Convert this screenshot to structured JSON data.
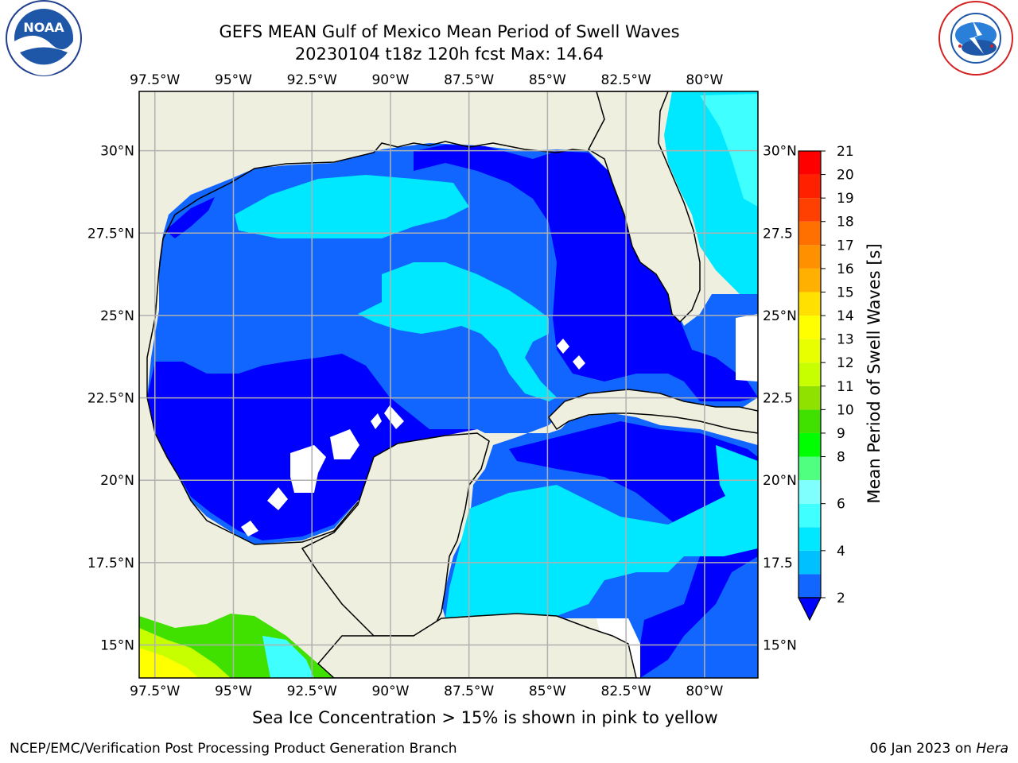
{
  "title_line1": "GEFS MEAN Gulf of Mexico Mean Period of Swell Waves",
  "title_line2": "20230104 t18z 120h fcst   Max: 14.64",
  "note": "Sea Ice Concentration > 15% is shown in pink to yellow",
  "footer_left": "NCEP/EMC/Verification Post Processing Product Generation Branch",
  "footer_right_prefix": "06 Jan 2023 on",
  "footer_right_machine": "Hera",
  "logos": {
    "left": "noaa-logo",
    "right": "nws-logo"
  },
  "colors": {
    "land": "#efefdf",
    "grid": "#b0b0b0",
    "coast": "#000000"
  },
  "chart_data": {
    "type": "heatmap",
    "variable": "Mean Period of Swell Waves [s]",
    "max_value": 14.64,
    "x_ticks": [
      "97.5°W",
      "95°W",
      "92.5°W",
      "90°W",
      "87.5°W",
      "85°W",
      "82.5°W",
      "80°W"
    ],
    "x_values": [
      -97.5,
      -95,
      -92.5,
      -90,
      -87.5,
      -85,
      -82.5,
      -80
    ],
    "y_ticks_left": [
      "30°N",
      "27.5°N",
      "25°N",
      "22.5°N",
      "20°N",
      "17.5°N",
      "15°N"
    ],
    "y_ticks_right": [
      "30°N",
      "27.5",
      "25°N",
      "22.5",
      "20°N",
      "17.5",
      "15°N"
    ],
    "y_values": [
      30,
      27.5,
      25,
      22.5,
      20,
      17.5,
      15
    ],
    "xlim": [
      -98,
      -78.3
    ],
    "ylim": [
      14,
      31.8
    ],
    "grid": true,
    "colorbar": {
      "label": "Mean Period of Swell Waves [s]",
      "levels": [
        2,
        3,
        4,
        5,
        6,
        7,
        8,
        9,
        10,
        11,
        12,
        13,
        14,
        15,
        16,
        17,
        18,
        19,
        20,
        21
      ],
      "labels": [
        "2",
        "4",
        "6",
        "8",
        "9",
        "10",
        "11",
        "12",
        "13",
        "14",
        "15",
        "16",
        "17",
        "18",
        "19",
        "20",
        "21"
      ],
      "label_values": [
        2,
        4,
        6,
        8,
        9,
        10,
        11,
        12,
        13,
        14,
        15,
        16,
        17,
        18,
        19,
        20,
        21
      ],
      "colors": [
        "#0000ff",
        "#1166ff",
        "#00c0ff",
        "#00e8ff",
        "#40ffff",
        "#80ffff",
        "#50ff80",
        "#00ff00",
        "#40e000",
        "#90e000",
        "#c8ff00",
        "#e8ff00",
        "#ffff00",
        "#ffe000",
        "#ffb000",
        "#ff9000",
        "#ff7000",
        "#ff4000",
        "#ff2000",
        "#ff0000"
      ],
      "extend": "min"
    }
  }
}
